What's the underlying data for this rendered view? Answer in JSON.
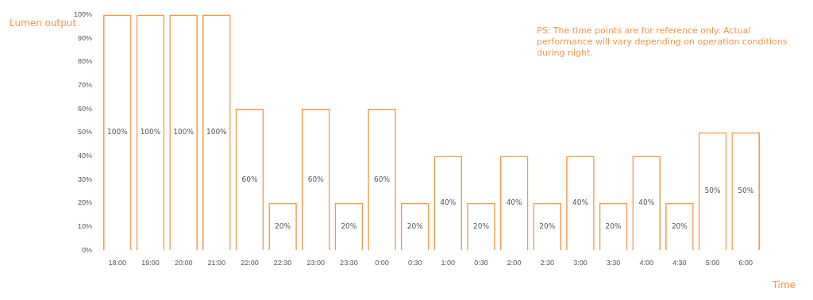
{
  "chart_data": {
    "type": "bar",
    "ylabel": "Lumen output",
    "xlabel": "Time",
    "categories": [
      "18:00",
      "19:00",
      "20:00",
      "21:00",
      "22:00",
      "22:30",
      "23:00",
      "23:30",
      "0:00",
      "0:30",
      "1:00",
      "0:30",
      "2:00",
      "2:30",
      "3:00",
      "3:30",
      "4:00",
      "4:30",
      "5:00",
      "6:00"
    ],
    "values": [
      100,
      100,
      100,
      100,
      60,
      20,
      60,
      20,
      60,
      20,
      40,
      20,
      40,
      20,
      40,
      20,
      40,
      20,
      50,
      50
    ],
    "color": "#f79646",
    "ylim": [
      0,
      100
    ],
    "yticks": [
      {
        "value": 0,
        "label": "0%"
      },
      {
        "value": 10,
        "label": "10%"
      },
      {
        "value": 20,
        "label": "20%"
      },
      {
        "value": 30,
        "label": "30%"
      },
      {
        "value": 40,
        "label": "40%"
      },
      {
        "value": 50,
        "label": "50%"
      },
      {
        "value": 60,
        "label": "60%"
      },
      {
        "value": 70,
        "label": "70%"
      },
      {
        "value": 80,
        "label": "80%"
      },
      {
        "value": 90,
        "label": "90%"
      },
      {
        "value": 100,
        "label": "100%"
      }
    ],
    "value_labels": [
      "100%",
      "100%",
      "100%",
      "100%",
      "60%",
      "20%",
      "60%",
      "20%",
      "60%",
      "20%",
      "40%",
      "20%",
      "40%",
      "20%",
      "40%",
      "20%",
      "40%",
      "20%",
      "50%",
      "50%"
    ],
    "grid": false,
    "legend": false,
    "annotations": [
      "PS: The time points are for reference only. Actual performance will vary depending on operation conditions during night."
    ]
  }
}
